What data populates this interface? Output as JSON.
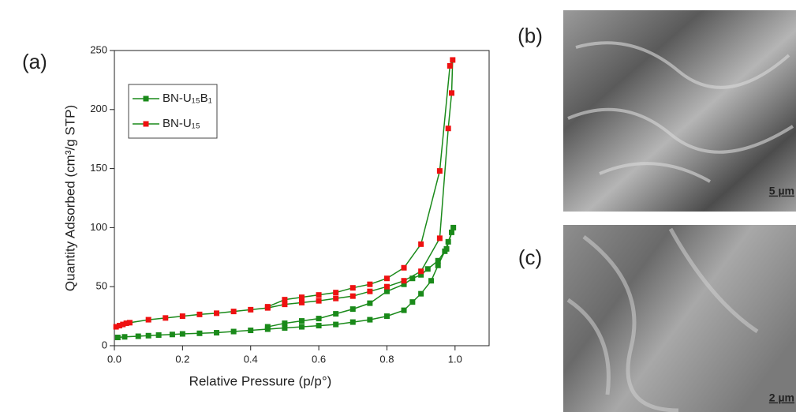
{
  "chart_data": {
    "type": "line",
    "panel_label": "(a)",
    "x_label": "Relative Pressure (p/p°)",
    "y_label": "Quantity Adsorbed (cm³/g STP)",
    "xlim": [
      0,
      1.1
    ],
    "xticks": [
      {
        "value": 0,
        "label": "0.0"
      },
      0.2,
      0.4,
      0.6,
      0.8,
      {
        "value": 1,
        "label": "1.0"
      }
    ],
    "ylim": [
      0,
      250
    ],
    "yticks": [
      0,
      50,
      100,
      150,
      200,
      250
    ],
    "series": [
      {
        "name": "BN-U₁₅B₁",
        "color": "#1a8a1a",
        "line_color": "#1a8a1a",
        "x": [
          0.01,
          0.03,
          0.07,
          0.1,
          0.13,
          0.17,
          0.2,
          0.25,
          0.3,
          0.35,
          0.4,
          0.45,
          0.5,
          0.55,
          0.6,
          0.65,
          0.7,
          0.75,
          0.8,
          0.85,
          0.875,
          0.9,
          0.93,
          0.95,
          0.97,
          0.98,
          0.99,
          0.995,
          0.975,
          0.95,
          0.92,
          0.9,
          0.875,
          0.85,
          0.8,
          0.75,
          0.7,
          0.65,
          0.6,
          0.55,
          0.5,
          0.45
        ],
        "values": [
          7,
          7.5,
          8,
          8.5,
          9,
          9.5,
          10,
          10.5,
          11,
          12,
          13,
          14,
          15,
          16,
          17,
          18,
          20,
          22,
          25,
          30,
          37,
          44,
          55,
          68,
          80,
          88,
          96,
          100,
          82,
          72,
          65,
          60,
          57,
          52,
          46,
          36,
          31,
          27,
          23,
          21,
          19,
          16
        ]
      },
      {
        "name": "BN-U₁₅",
        "color": "#ee1111",
        "line_color": "#1a8a1a",
        "x": [
          0.005,
          0.015,
          0.025,
          0.035,
          0.045,
          0.1,
          0.15,
          0.2,
          0.25,
          0.3,
          0.35,
          0.4,
          0.45,
          0.5,
          0.55,
          0.6,
          0.65,
          0.7,
          0.75,
          0.8,
          0.85,
          0.9,
          0.955,
          0.98,
          0.99,
          0.993,
          0.985,
          0.955,
          0.9,
          0.85,
          0.8,
          0.75,
          0.7,
          0.65,
          0.6,
          0.55,
          0.5,
          0.45
        ],
        "values": [
          16,
          17,
          18,
          19,
          19.5,
          22,
          23.5,
          25,
          26.5,
          27.5,
          29,
          30.5,
          32,
          35,
          36.5,
          38,
          40,
          42,
          46,
          50,
          55,
          63,
          91,
          184,
          214,
          242,
          237,
          148,
          86,
          66,
          57,
          52,
          49,
          45,
          43,
          41,
          39,
          33
        ]
      }
    ]
  },
  "images": [
    {
      "panel_label": "(b)",
      "scale_bar": "5 µm"
    },
    {
      "panel_label": "(c)",
      "scale_bar": "2 µm"
    }
  ]
}
